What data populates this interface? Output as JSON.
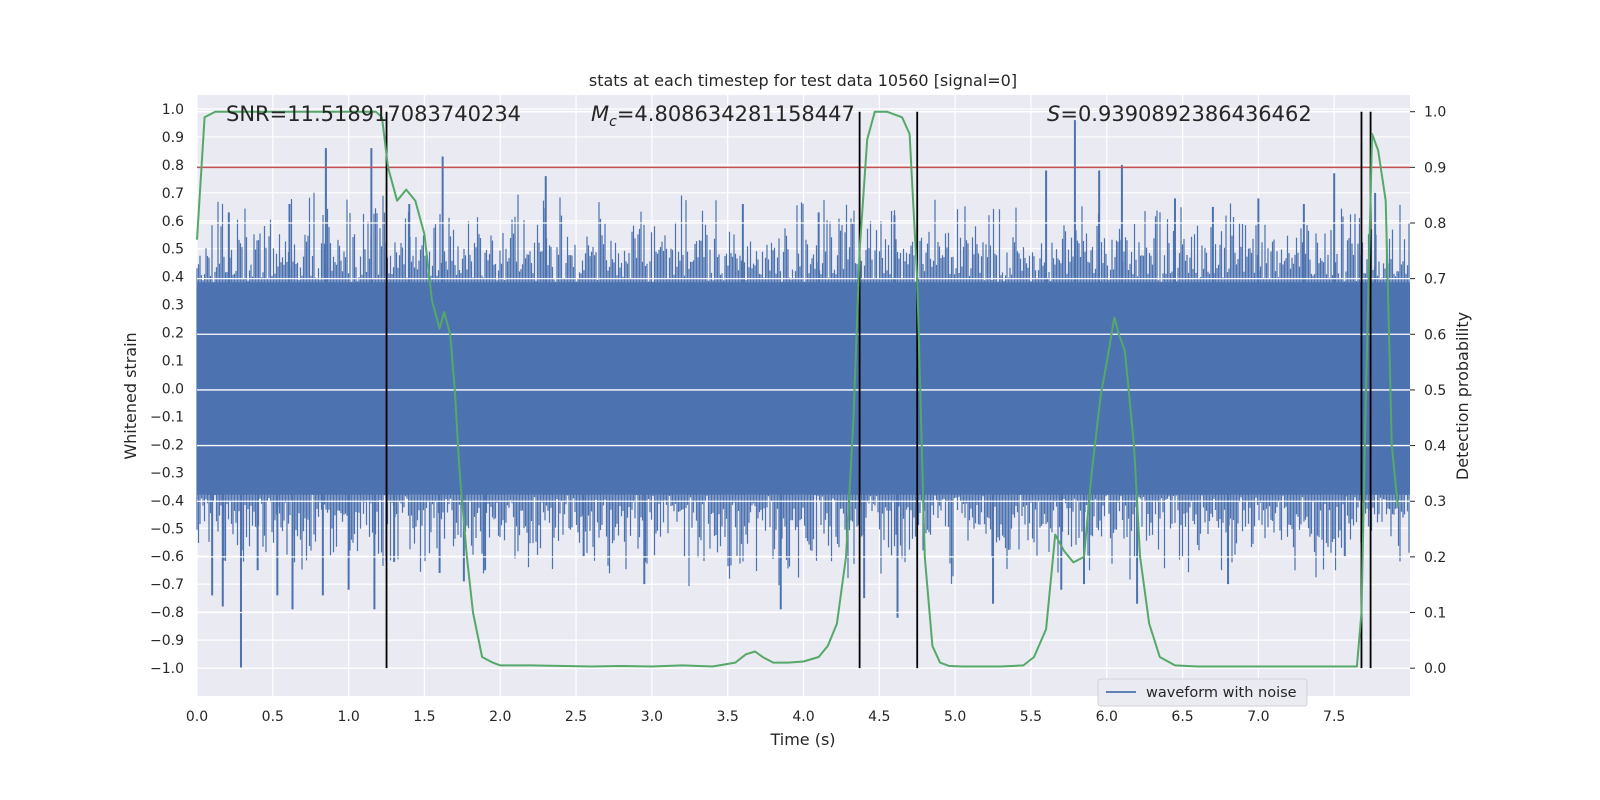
{
  "chart_data": {
    "type": "line",
    "title": "stats at each timestep for test data 10560 [signal=0]",
    "xlabel": "Time (s)",
    "ylabel_left": "Whitened strain",
    "ylabel_right": "Detection probability",
    "xlim": [
      0,
      8
    ],
    "ylim_left": [
      -1.1,
      1.05
    ],
    "ylim_right": [
      -0.05,
      1.03
    ],
    "x_ticks": [
      "0.0",
      "0.5",
      "1.0",
      "1.5",
      "2.0",
      "2.5",
      "3.0",
      "3.5",
      "4.0",
      "4.5",
      "5.0",
      "5.5",
      "6.0",
      "6.5",
      "7.0",
      "7.5"
    ],
    "y_ticks_left": [
      "1.0",
      "0.9",
      "0.8",
      "0.7",
      "0.6",
      "0.5",
      "0.4",
      "0.3",
      "0.2",
      "0.1",
      "0.0",
      "−0.1",
      "−0.2",
      "−0.3",
      "−0.4",
      "−0.5",
      "−0.6",
      "−0.7",
      "−0.8",
      "−0.9",
      "−1.0"
    ],
    "y_ticks_right": [
      "1.0",
      "0.9",
      "0.8",
      "0.7",
      "0.6",
      "0.5",
      "0.4",
      "0.3",
      "0.2",
      "0.1",
      "0.0"
    ],
    "annotations": {
      "snr": "SNR=11.518917083740234",
      "mc_symbol": "M",
      "mc_sub": "c",
      "mc_value": "=4.808634281158447",
      "s_symbol": "S",
      "s_value": "=0.9390892386436462"
    },
    "threshold": 0.9,
    "detection_boundaries": [
      1.25,
      4.37,
      4.75,
      7.68,
      7.74
    ],
    "noise_band": {
      "core_amplitude": 0.38,
      "typical_peak": 0.6
    },
    "noise_spikes": [
      [
        0.1,
        -0.74
      ],
      [
        0.17,
        -0.78
      ],
      [
        0.29,
        -1.0
      ],
      [
        0.21,
        0.63
      ],
      [
        0.4,
        -0.65
      ],
      [
        0.53,
        -0.74
      ],
      [
        0.61,
        0.66
      ],
      [
        0.63,
        -0.79
      ],
      [
        0.85,
        0.86
      ],
      [
        0.83,
        -0.74
      ],
      [
        1.0,
        -0.72
      ],
      [
        1.15,
        0.86
      ],
      [
        1.17,
        -0.79
      ],
      [
        1.3,
        -0.62
      ],
      [
        1.4,
        0.66
      ],
      [
        1.62,
        0.83
      ],
      [
        1.6,
        -0.66
      ],
      [
        1.76,
        -0.69
      ],
      [
        1.9,
        -0.65
      ],
      [
        2.3,
        0.76
      ],
      [
        2.55,
        -0.6
      ],
      [
        2.95,
        -0.7
      ],
      [
        3.6,
        0.66
      ],
      [
        3.85,
        -0.79
      ],
      [
        4.1,
        0.63
      ],
      [
        4.4,
        -0.75
      ],
      [
        4.6,
        0.62
      ],
      [
        4.62,
        -0.82
      ],
      [
        5.25,
        -0.77
      ],
      [
        5.6,
        0.78
      ],
      [
        5.7,
        -0.72
      ],
      [
        5.79,
        0.96
      ],
      [
        5.85,
        -0.7
      ],
      [
        5.95,
        0.78
      ],
      [
        6.1,
        0.8
      ],
      [
        6.2,
        -0.77
      ],
      [
        6.45,
        0.68
      ],
      [
        6.7,
        0.65
      ],
      [
        6.8,
        -0.7
      ],
      [
        7.0,
        0.68
      ],
      [
        7.3,
        0.66
      ],
      [
        7.5,
        0.77
      ],
      [
        7.57,
        -0.6
      ],
      [
        7.77,
        0.7
      ]
    ],
    "series": [
      {
        "name": "detection probability",
        "axis": "right",
        "color": "#55a868",
        "x": [
          0.0,
          0.05,
          0.12,
          0.2,
          0.4,
          0.6,
          0.8,
          1.0,
          1.1,
          1.18,
          1.22,
          1.26,
          1.32,
          1.38,
          1.44,
          1.5,
          1.55,
          1.6,
          1.63,
          1.67,
          1.7,
          1.73,
          1.78,
          1.82,
          1.88,
          1.95,
          2.0,
          2.2,
          2.6,
          2.8,
          3.0,
          3.2,
          3.4,
          3.55,
          3.62,
          3.68,
          3.73,
          3.8,
          3.9,
          4.0,
          4.1,
          4.16,
          4.22,
          4.28,
          4.33,
          4.37,
          4.42,
          4.47,
          4.55,
          4.65,
          4.7,
          4.75,
          4.8,
          4.85,
          4.9,
          4.96,
          5.05,
          5.3,
          5.45,
          5.52,
          5.6,
          5.66,
          5.72,
          5.78,
          5.85,
          5.9,
          5.96,
          6.0,
          6.05,
          6.08,
          6.12,
          6.18,
          6.22,
          6.28,
          6.35,
          6.45,
          6.6,
          7.0,
          7.3,
          7.5,
          7.65,
          7.68,
          7.71,
          7.75,
          7.79,
          7.84,
          7.88,
          7.92
        ],
        "values": [
          0.77,
          0.99,
          1.0,
          1.0,
          1.0,
          1.0,
          1.0,
          1.0,
          1.0,
          1.0,
          0.99,
          0.9,
          0.84,
          0.86,
          0.84,
          0.78,
          0.66,
          0.61,
          0.64,
          0.6,
          0.5,
          0.36,
          0.2,
          0.1,
          0.02,
          0.01,
          0.005,
          0.005,
          0.003,
          0.004,
          0.003,
          0.005,
          0.003,
          0.01,
          0.025,
          0.03,
          0.02,
          0.01,
          0.01,
          0.012,
          0.02,
          0.04,
          0.08,
          0.2,
          0.45,
          0.75,
          0.95,
          1.0,
          1.0,
          0.99,
          0.96,
          0.7,
          0.2,
          0.04,
          0.01,
          0.004,
          0.003,
          0.003,
          0.005,
          0.02,
          0.07,
          0.24,
          0.21,
          0.19,
          0.2,
          0.35,
          0.49,
          0.55,
          0.63,
          0.6,
          0.57,
          0.4,
          0.2,
          0.08,
          0.02,
          0.005,
          0.003,
          0.003,
          0.003,
          0.003,
          0.003,
          0.1,
          0.5,
          0.96,
          0.93,
          0.84,
          0.4,
          0.29
        ]
      },
      {
        "name": "waveform with noise",
        "axis": "left",
        "color": "#4c72b0"
      }
    ],
    "legend": {
      "position": "lower-right",
      "entries": [
        "waveform with noise"
      ]
    },
    "grid": true,
    "colors": {
      "background": "#eaeaf2",
      "grid": "#ffffff",
      "waveform": "#4c72b0",
      "probability": "#55a868",
      "threshold": "#c44e52",
      "boundary": "#000000"
    }
  }
}
